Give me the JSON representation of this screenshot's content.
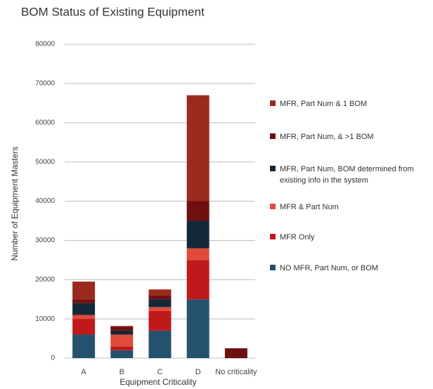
{
  "chart_data": {
    "type": "bar",
    "stacked": true,
    "title": "BOM Status of Existing Equipment",
    "xlabel": "Equipment Criticality",
    "ylabel": "Number of Equipment Masters",
    "categories": [
      "A",
      "B",
      "C",
      "D",
      "No criticality"
    ],
    "series": [
      {
        "name": "NO MFR, Part Num, or BOM",
        "color": "#24526e",
        "values": [
          6000,
          2000,
          7000,
          15000,
          0
        ]
      },
      {
        "name": "MFR Only",
        "color": "#c0191c",
        "values": [
          4000,
          1000,
          5000,
          10000,
          0
        ]
      },
      {
        "name": "MFR & Part Num",
        "color": "#e04b3a",
        "values": [
          1000,
          3000,
          1000,
          3000,
          0
        ]
      },
      {
        "name": "MFR, Part Num, BOM determined from existing info in the system",
        "color": "#13293a",
        "values": [
          3000,
          1000,
          2000,
          7000,
          0
        ]
      },
      {
        "name": "MFR, Part Num, & >1 BOM",
        "color": "#6e0f10",
        "values": [
          1000,
          1000,
          1000,
          5000,
          2500
        ]
      },
      {
        "name": "MFR, Part Num & 1 BOM",
        "color": "#9b2a1e",
        "values": [
          4500,
          200,
          1500,
          27000,
          0
        ]
      }
    ],
    "ylim": [
      0,
      80000
    ],
    "yticks": [
      0,
      10000,
      20000,
      30000,
      40000,
      50000,
      60000,
      70000,
      80000
    ],
    "grid": true
  }
}
